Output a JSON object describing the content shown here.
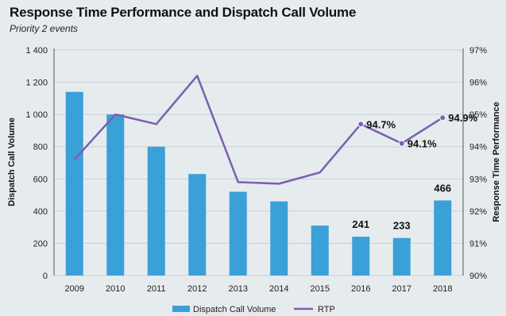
{
  "colors": {
    "bar": "#3aa0d8",
    "line": "#7b5fae",
    "grid": "#c9d0d5",
    "background": "#e6ebee"
  },
  "chart_data": {
    "type": "bar",
    "title": "Response Time Performance and Dispatch Call Volume",
    "subtitle": "Priority 2 events",
    "categories": [
      "2009",
      "2010",
      "2011",
      "2012",
      "2013",
      "2014",
      "2015",
      "2016",
      "2017",
      "2018"
    ],
    "series": [
      {
        "name": "Dispatch Call Volume",
        "type": "bar",
        "axis": "left",
        "values": [
          1140,
          1000,
          800,
          630,
          520,
          460,
          310,
          241,
          233,
          466
        ]
      },
      {
        "name": "RTP",
        "type": "line",
        "axis": "right",
        "values": [
          93.6,
          95.0,
          94.7,
          96.2,
          92.9,
          92.85,
          93.2,
          94.7,
          94.1,
          94.9
        ]
      }
    ],
    "bar_data_labels": [
      {
        "index": 7,
        "text": "241"
      },
      {
        "index": 8,
        "text": "233"
      },
      {
        "index": 9,
        "text": "466"
      }
    ],
    "line_data_labels": [
      {
        "index": 7,
        "text": "94.7%"
      },
      {
        "index": 8,
        "text": "94.1%"
      },
      {
        "index": 9,
        "text": "94.9%"
      }
    ],
    "ylabel": "Dispatch Call Volume",
    "y2label": "Response Time Performance",
    "ylim": [
      0,
      1400
    ],
    "y2lim": [
      90,
      97
    ],
    "yticks": [
      "0",
      "200",
      "400",
      "600",
      "800",
      "1 000",
      "1 200",
      "1 400"
    ],
    "y2ticks": [
      "90%",
      "91%",
      "92%",
      "93%",
      "94%",
      "95%",
      "96%",
      "97%"
    ],
    "grid": true,
    "legend_position": "bottom"
  }
}
